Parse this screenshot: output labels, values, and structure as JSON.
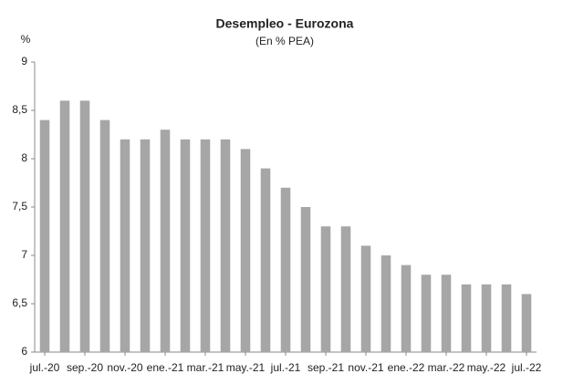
{
  "chart_data": {
    "type": "bar",
    "title": "Desempleo - Eurozona",
    "subtitle": "(En % PEA)",
    "y_label": "%",
    "categories": [
      "jul.-20",
      null,
      "sep.-20",
      null,
      "nov.-20",
      null,
      "ene.-21",
      null,
      "mar.-21",
      null,
      "may.-21",
      null,
      "jul.-21",
      null,
      "sep.-21",
      null,
      "nov.-21",
      null,
      "ene.-22",
      null,
      "mar.-22",
      null,
      "may.-22",
      null,
      "jul.-22"
    ],
    "values": [
      8.4,
      8.6,
      8.6,
      8.4,
      8.2,
      8.2,
      8.3,
      8.2,
      8.2,
      8.2,
      8.1,
      7.9,
      7.7,
      7.5,
      7.3,
      7.3,
      7.1,
      7.0,
      6.9,
      6.8,
      6.8,
      6.7,
      6.7,
      6.7,
      6.6
    ],
    "color": "#a6a6a6",
    "ylim": [
      6,
      9
    ],
    "yticks": [
      6,
      {
        "value": 6.5,
        "label": "6,5"
      },
      7,
      {
        "value": 7.5,
        "label": "7,5"
      },
      8,
      {
        "value": 8.5,
        "label": "8,5"
      },
      9
    ],
    "grid": false
  }
}
